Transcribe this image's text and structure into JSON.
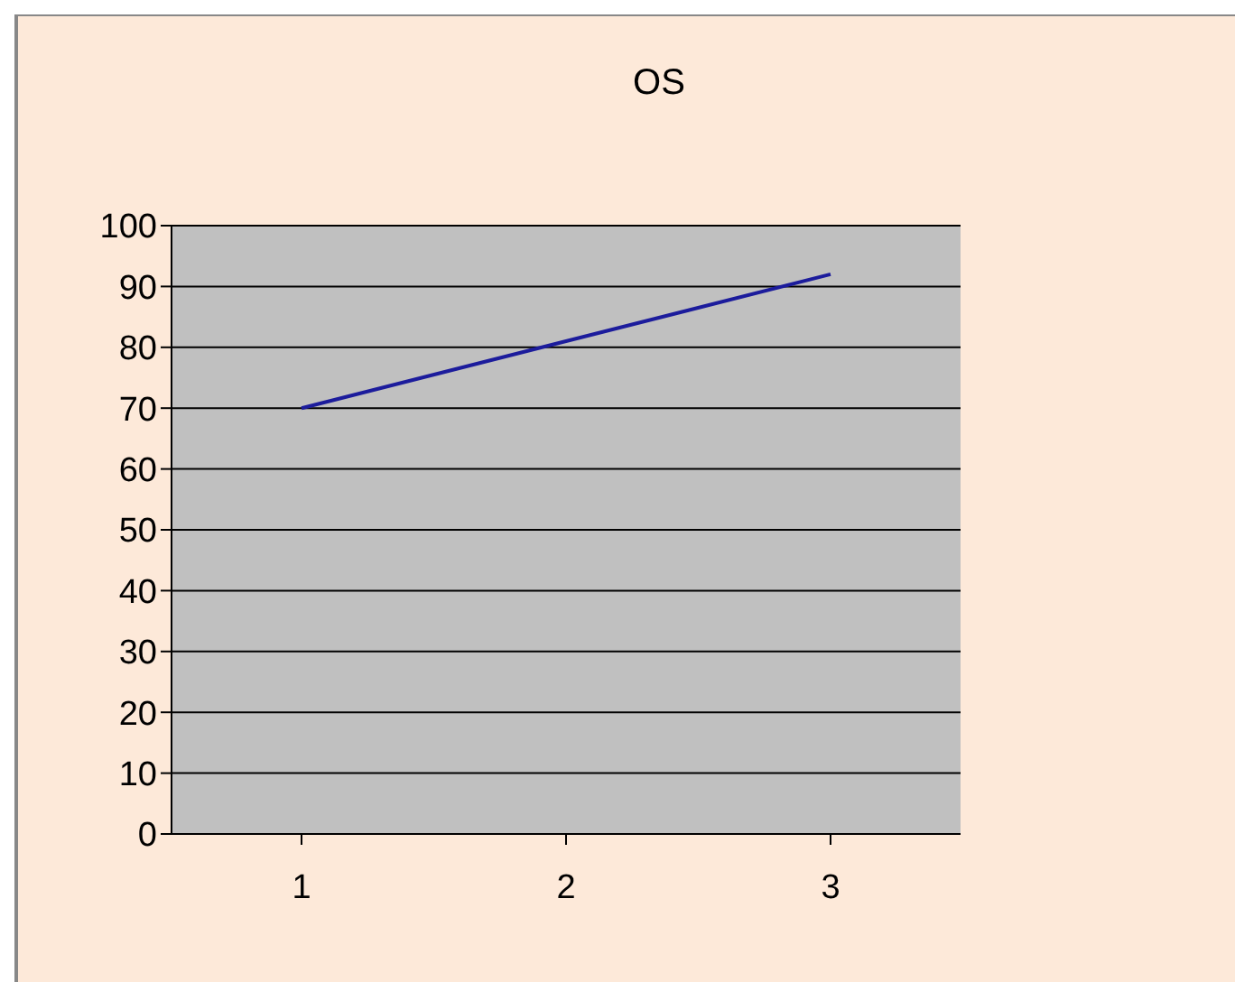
{
  "chart_data": {
    "type": "line",
    "title": "OS",
    "categories": [
      "1",
      "2",
      "3"
    ],
    "series": [
      {
        "color": "#1c1c9c",
        "values": [
          70,
          81,
          92
        ]
      }
    ],
    "ylim": [
      0,
      100
    ],
    "yticks": [
      0,
      10,
      20,
      30,
      40,
      50,
      60,
      70,
      80,
      90,
      100
    ],
    "grid": "y",
    "marker": "none"
  }
}
